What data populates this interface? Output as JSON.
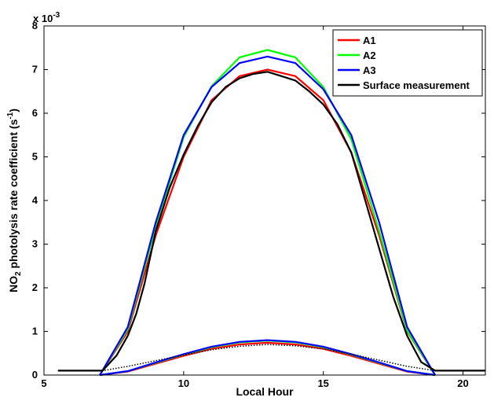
{
  "chart_data": {
    "type": "line",
    "title": "",
    "xlabel": "Local Hour",
    "ylabel_main": "NO",
    "ylabel_sub": "2",
    "ylabel_rest": " photolysis rate coefficient (s",
    "ylabel_sup": "-1",
    "ylabel_close": ")",
    "y_multiplier_base": "x 10",
    "y_multiplier_exp": "-3",
    "xlim": [
      5,
      20.8
    ],
    "ylim": [
      0,
      8
    ],
    "x_ticks": [
      5,
      10,
      15,
      20
    ],
    "x_tick_labels": [
      "5",
      "10",
      "15",
      "20"
    ],
    "y_ticks": [
      0,
      1,
      2,
      3,
      4,
      5,
      6,
      7,
      8
    ],
    "y_tick_labels": [
      "0",
      "1",
      "2",
      "3",
      "4",
      "5",
      "6",
      "7",
      "8"
    ],
    "grid": false,
    "legend_position": "top-right",
    "series": [
      {
        "name": "A1",
        "color": "#ff0000",
        "x": [
          7,
          8,
          9,
          10,
          11,
          12,
          13,
          14,
          15,
          16,
          17,
          18,
          19
        ],
        "values": [
          0,
          1.0,
          3.2,
          5.0,
          6.3,
          6.85,
          7.0,
          6.85,
          6.3,
          5.1,
          3.2,
          1.0,
          0
        ]
      },
      {
        "name": "A2",
        "color": "#00ff00",
        "x": [
          7,
          8,
          9,
          10,
          11,
          12,
          13,
          14,
          15,
          16,
          17,
          18,
          19
        ],
        "values": [
          0,
          1.05,
          3.4,
          5.45,
          6.62,
          7.28,
          7.45,
          7.28,
          6.6,
          5.4,
          3.3,
          1.02,
          0
        ]
      },
      {
        "name": "A3",
        "color": "#0000ff",
        "x": [
          7,
          8,
          9,
          10,
          11,
          12,
          13,
          14,
          15,
          16,
          17,
          18,
          19
        ],
        "values": [
          0,
          1.1,
          3.5,
          5.5,
          6.6,
          7.15,
          7.3,
          7.15,
          6.55,
          5.5,
          3.5,
          1.1,
          0
        ]
      },
      {
        "name": "Surface measurement",
        "color": "#000000",
        "x": [
          5.5,
          7.1,
          7.6,
          8,
          8.3,
          8.6,
          9,
          9.5,
          10,
          10.5,
          11,
          11.5,
          12,
          12.5,
          13,
          13.5,
          14,
          14.5,
          15,
          15.5,
          16,
          16.5,
          17,
          17.5,
          18,
          18.5,
          19,
          20.8
        ],
        "values": [
          0.1,
          0.1,
          0.45,
          0.9,
          1.4,
          2.1,
          3.3,
          4.3,
          5.05,
          5.7,
          6.25,
          6.6,
          6.8,
          6.9,
          6.95,
          6.85,
          6.75,
          6.5,
          6.2,
          5.75,
          5.1,
          4.0,
          2.9,
          1.8,
          0.9,
          0.3,
          0.1,
          0.1
        ]
      }
    ],
    "low_series": [
      {
        "color": "#ff0000",
        "x": [
          7,
          8,
          9,
          10,
          11,
          12,
          13,
          14,
          15,
          16,
          17,
          18,
          19
        ],
        "values": [
          0,
          0.08,
          0.26,
          0.44,
          0.6,
          0.7,
          0.74,
          0.7,
          0.6,
          0.44,
          0.26,
          0.08,
          0
        ]
      },
      {
        "color": "#00ff00",
        "x": [
          7,
          8,
          9,
          10,
          11,
          12,
          13,
          14,
          15,
          16,
          17,
          18,
          19
        ],
        "values": [
          0,
          0.09,
          0.28,
          0.47,
          0.64,
          0.75,
          0.79,
          0.75,
          0.64,
          0.47,
          0.28,
          0.09,
          0
        ]
      },
      {
        "color": "#0000ff",
        "x": [
          7,
          8,
          9,
          10,
          11,
          12,
          13,
          14,
          15,
          16,
          17,
          18,
          19
        ],
        "values": [
          0,
          0.09,
          0.29,
          0.48,
          0.65,
          0.76,
          0.8,
          0.76,
          0.65,
          0.48,
          0.29,
          0.09,
          0
        ]
      },
      {
        "color": "#000000",
        "dashed": true,
        "x": [
          5.5,
          7.1,
          8,
          9,
          10,
          11,
          12,
          13,
          14,
          15,
          16,
          17,
          18,
          19,
          20.8
        ],
        "values": [
          0.1,
          0.1,
          0.2,
          0.33,
          0.46,
          0.58,
          0.66,
          0.7,
          0.67,
          0.6,
          0.48,
          0.34,
          0.2,
          0.1,
          0.1
        ]
      }
    ]
  }
}
